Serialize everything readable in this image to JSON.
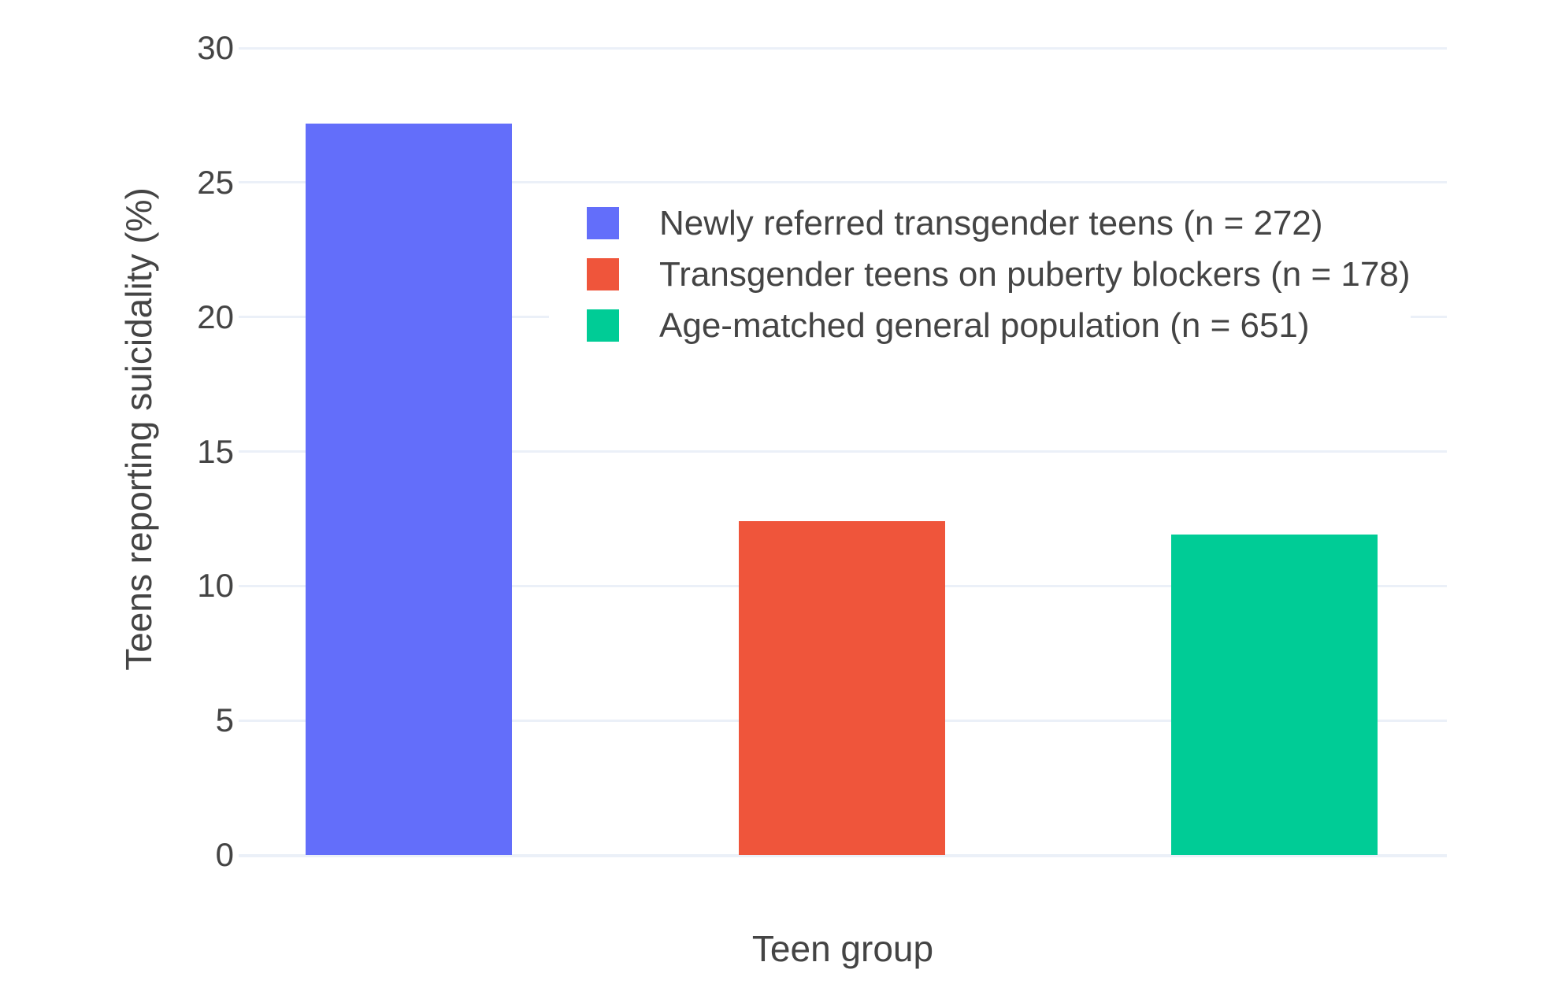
{
  "chart_data": {
    "type": "bar",
    "title": "",
    "xlabel": "Teen group",
    "ylabel": "Teens reporting suicidality (%)",
    "ylim": [
      0,
      30
    ],
    "yticks": [
      0,
      5,
      10,
      15,
      20,
      25,
      30
    ],
    "grid": true,
    "legend_position": "inside-top-right",
    "categories": [
      "Newly referred transgender teens",
      "Transgender teens on puberty blockers",
      "Age-matched general population"
    ],
    "series": [
      {
        "name": "Newly referred transgender teens (n = 272)",
        "value": 27.2,
        "color": "#636EFA"
      },
      {
        "name": "Transgender teens on puberty blockers (n = 178)",
        "value": 12.4,
        "color": "#EF553B"
      },
      {
        "name": "Age-matched general population (n = 651)",
        "value": 11.9,
        "color": "#00CC96"
      }
    ]
  },
  "colors": {
    "background": "#FFFFFF",
    "grid": "#EBF0F8",
    "text": "#444444"
  }
}
